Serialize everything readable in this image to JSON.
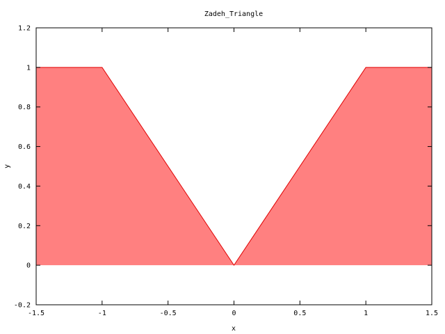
{
  "chart_data": {
    "type": "area",
    "title": "Zadeh_Triangle",
    "xlabel": "x",
    "ylabel": "y",
    "xlim": [
      -1.5,
      1.5
    ],
    "ylim": [
      -0.2,
      1.2
    ],
    "xticks": [
      -1.5,
      -1,
      -0.5,
      0,
      0.5,
      1,
      1.5
    ],
    "xtick_labels": [
      "-1.5",
      "-1",
      "-0.5",
      "0",
      "0.5",
      "1",
      "1.5"
    ],
    "yticks": [
      -0.2,
      0,
      0.2,
      0.4,
      0.6,
      0.8,
      1,
      1.2
    ],
    "ytick_labels": [
      "-0.2",
      "0",
      "0.2",
      "0.4",
      "0.6",
      "0.8",
      "1",
      "1.2"
    ],
    "grid": false,
    "series": [
      {
        "x": [
          -1.5,
          -1,
          0,
          1,
          1.5
        ],
        "y": [
          1,
          1,
          0,
          1,
          1
        ],
        "fill_to": 0,
        "line_color": "#e00000",
        "fill_color": "#ff8080"
      }
    ]
  }
}
